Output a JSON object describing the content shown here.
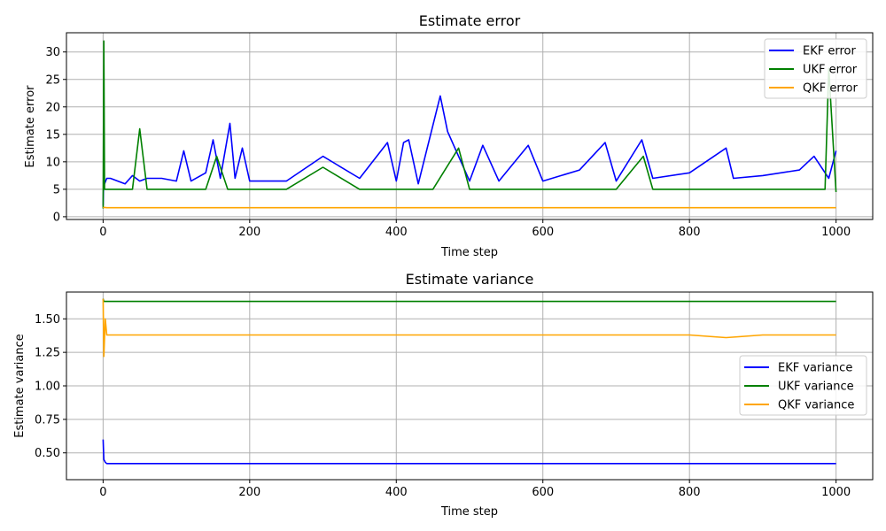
{
  "chart_data": [
    {
      "type": "line",
      "title": "Estimate error",
      "xlabel": "Time step",
      "ylabel": "Estimate error",
      "xlim": [
        -50,
        1050
      ],
      "ylim": [
        -0.5,
        33.5
      ],
      "xticks": [
        0,
        200,
        400,
        600,
        800,
        1000
      ],
      "yticks": [
        0,
        5,
        10,
        15,
        20,
        25,
        30
      ],
      "grid": true,
      "legend_position": "top-right",
      "series": [
        {
          "name": "EKF error",
          "color": "#0000ff",
          "x": [
            0,
            1,
            2,
            5,
            10,
            20,
            30,
            40,
            50,
            60,
            80,
            100,
            110,
            120,
            140,
            150,
            160,
            173,
            180,
            190,
            200,
            250,
            300,
            350,
            388,
            400,
            410,
            417,
            430,
            460,
            470,
            500,
            518,
            540,
            580,
            600,
            650,
            685,
            700,
            735,
            750,
            800,
            850,
            860,
            900,
            950,
            970,
            990,
            1000
          ],
          "y": [
            2,
            8,
            6,
            7,
            7,
            6.5,
            6,
            7.5,
            6.5,
            7,
            7,
            6.5,
            12,
            6.5,
            8,
            14,
            7,
            17,
            7,
            12.5,
            6.5,
            6.5,
            11,
            7,
            13.5,
            6.5,
            13.5,
            14,
            6,
            22,
            15.5,
            6.5,
            13,
            6.5,
            13,
            6.5,
            8.5,
            13.5,
            6.5,
            14,
            7,
            8,
            12.5,
            7,
            7.5,
            8.5,
            11,
            7,
            12
          ]
        },
        {
          "name": "UKF error",
          "color": "#008000",
          "x": [
            0,
            1,
            2,
            5,
            10,
            20,
            30,
            40,
            50,
            60,
            100,
            140,
            155,
            170,
            200,
            250,
            300,
            350,
            400,
            450,
            485,
            500,
            550,
            600,
            650,
            700,
            737,
            750,
            800,
            850,
            900,
            930,
            960,
            985,
            990,
            1000
          ],
          "y": [
            1.5,
            32,
            5,
            5,
            5,
            5,
            5,
            5,
            16,
            5,
            5,
            5,
            11,
            5,
            5,
            5,
            9,
            5,
            5,
            5,
            12.5,
            5,
            5,
            5,
            5,
            5,
            11,
            5,
            5,
            5,
            5,
            5,
            5,
            5,
            27,
            4.5
          ]
        },
        {
          "name": "QKF error",
          "color": "#ffa500",
          "x": [
            0,
            1,
            5,
            100,
            200,
            300,
            400,
            500,
            600,
            700,
            800,
            900,
            1000
          ],
          "y": [
            1.6,
            1.7,
            1.65,
            1.65,
            1.65,
            1.65,
            1.65,
            1.65,
            1.65,
            1.65,
            1.65,
            1.65,
            1.65
          ]
        }
      ]
    },
    {
      "type": "line",
      "title": "Estimate variance",
      "xlabel": "Time step",
      "ylabel": "Estimate variance",
      "xlim": [
        -50,
        1050
      ],
      "ylim": [
        0.3,
        1.7
      ],
      "xticks": [
        0,
        200,
        400,
        600,
        800,
        1000
      ],
      "yticks": [
        0.5,
        0.75,
        1.0,
        1.25,
        1.5
      ],
      "ytick_labels": [
        "0.50",
        "0.75",
        "1.00",
        "1.25",
        "1.50"
      ],
      "grid": true,
      "legend_position": "center-right",
      "series": [
        {
          "name": "EKF variance",
          "color": "#0000ff",
          "x": [
            0,
            1,
            3,
            5,
            10,
            50,
            100,
            200,
            300,
            400,
            500,
            600,
            700,
            800,
            900,
            1000
          ],
          "y": [
            0.6,
            0.45,
            0.43,
            0.42,
            0.42,
            0.42,
            0.42,
            0.42,
            0.42,
            0.42,
            0.42,
            0.42,
            0.42,
            0.42,
            0.42,
            0.42
          ]
        },
        {
          "name": "UKF variance",
          "color": "#008000",
          "x": [
            0,
            1,
            2,
            100,
            200,
            300,
            400,
            500,
            600,
            700,
            800,
            900,
            1000
          ],
          "y": [
            1.65,
            1.63,
            1.63,
            1.63,
            1.63,
            1.63,
            1.63,
            1.63,
            1.63,
            1.63,
            1.63,
            1.63,
            1.63
          ]
        },
        {
          "name": "QKF variance",
          "color": "#ffa500",
          "x": [
            0,
            1,
            3,
            5,
            10,
            50,
            100,
            200,
            300,
            400,
            500,
            600,
            700,
            800,
            850,
            900,
            1000
          ],
          "y": [
            1.65,
            1.22,
            1.5,
            1.38,
            1.38,
            1.38,
            1.38,
            1.38,
            1.38,
            1.38,
            1.38,
            1.38,
            1.38,
            1.38,
            1.36,
            1.38,
            1.38
          ]
        }
      ]
    }
  ]
}
